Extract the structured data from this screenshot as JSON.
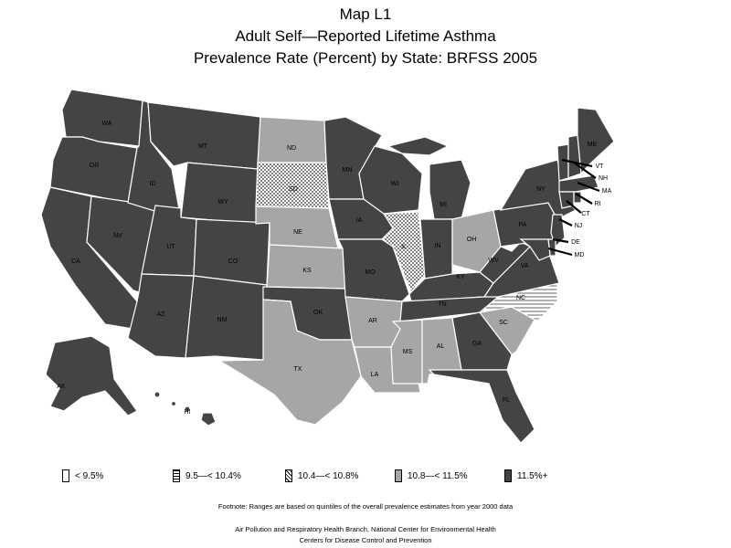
{
  "title": {
    "line1": "Map L1",
    "line2": "Adult Self—Reported Lifetime Asthma",
    "line3": "Prevalence Rate (Percent) by State: BRFSS 2005"
  },
  "colors": {
    "q1": "#ffffff",
    "q2": "#ffffff",
    "q3": "#ffffff",
    "q4": "#a6a6a6",
    "q5": "#444444",
    "border": "#ffffff"
  },
  "legend": [
    {
      "label": "< 9.5%",
      "key": "q1"
    },
    {
      "label": "9.5—< 10.4%",
      "key": "q2"
    },
    {
      "label": "10.4—< 10.8%",
      "key": "q3"
    },
    {
      "label": "10.8—< 11.5%",
      "key": "q4"
    },
    {
      "label": "11.5%+",
      "key": "q5"
    }
  ],
  "states": {
    "WA": "q5",
    "OR": "q5",
    "CA": "q5",
    "NV": "q5",
    "ID": "q5",
    "MT": "q5",
    "WY": "q5",
    "UT": "q5",
    "AZ": "q5",
    "CO": "q5",
    "NM": "q5",
    "ND": "q4",
    "SD": "q3",
    "NE": "q4",
    "KS": "q4",
    "OK": "q5",
    "TX": "q4",
    "MN": "q5",
    "IA": "q5",
    "MO": "q5",
    "AR": "q4",
    "LA": "q4",
    "WI": "q5",
    "IL": "q3",
    "MI": "q5",
    "IN": "q5",
    "OH": "q4",
    "KY": "q5",
    "TN": "q5",
    "MS": "q4",
    "AL": "q4",
    "GA": "q5",
    "FL": "q5",
    "SC": "q4",
    "NC": "q2",
    "VA": "q5",
    "WV": "q5",
    "PA": "q5",
    "NY": "q5",
    "ME": "q5",
    "VT": "q5",
    "NH": "q5",
    "MA": "q5",
    "RI": "q5",
    "CT": "q5",
    "NJ": "q5",
    "DE": "q5",
    "MD": "q5",
    "AK": "q5",
    "HI": "q5"
  },
  "footnote": "Footnote: Ranges are based on quintiles of the overall prevalence estimates from year 2000 data",
  "credit1": "Air Pollution and Respiratory Health Branch, National Center for Environmental Health",
  "credit2": "Centers for Disease Control and Prevention"
}
